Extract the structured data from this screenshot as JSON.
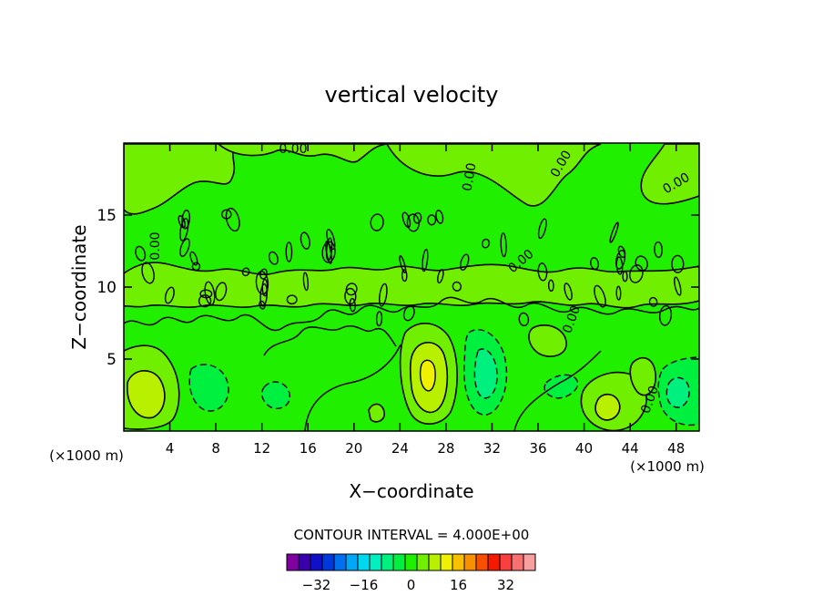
{
  "chart_data": {
    "type": "contour",
    "title": "vertical velocity",
    "xlabel": "X−coordinate",
    "ylabel": "Z−coordinate",
    "x_unit": "(×1000 m)",
    "z_unit": "(×1000 m)",
    "xlim": [
      0,
      50
    ],
    "ylim": [
      0,
      20
    ],
    "x_ticks": [
      4,
      8,
      12,
      16,
      20,
      24,
      28,
      32,
      36,
      40,
      44,
      48
    ],
    "y_ticks": [
      5,
      10,
      15
    ],
    "contour_interval_label": "CONTOUR INTERVAL = 4.000E+00",
    "contour_labels": [
      "0.00",
      "0.00",
      "0.00",
      "0.00",
      "0.00",
      "0.00",
      "0.00",
      "0.00"
    ],
    "colorbar": {
      "colors": [
        "#8000a0",
        "#3a00b0",
        "#1010c8",
        "#0038e0",
        "#0070f0",
        "#00a8f8",
        "#00d8f0",
        "#00f0c0",
        "#00f080",
        "#00f040",
        "#20f000",
        "#70f000",
        "#b8f000",
        "#f0f000",
        "#f8c000",
        "#f89000",
        "#f85000",
        "#f81800",
        "#f84040",
        "#f87070",
        "#f8a0a0"
      ],
      "tick_values": [
        -32,
        -16,
        0,
        16,
        32
      ],
      "tick_labels": [
        "−32",
        "−16",
        "0",
        "16",
        "32"
      ]
    },
    "colors": {
      "background_field": "#20f000",
      "weak_positive": "#70f000",
      "strong_positive": "#b8f000",
      "peak_positive": "#f0f000",
      "weak_negative": "#00f040",
      "strong_negative": "#00f080"
    }
  }
}
